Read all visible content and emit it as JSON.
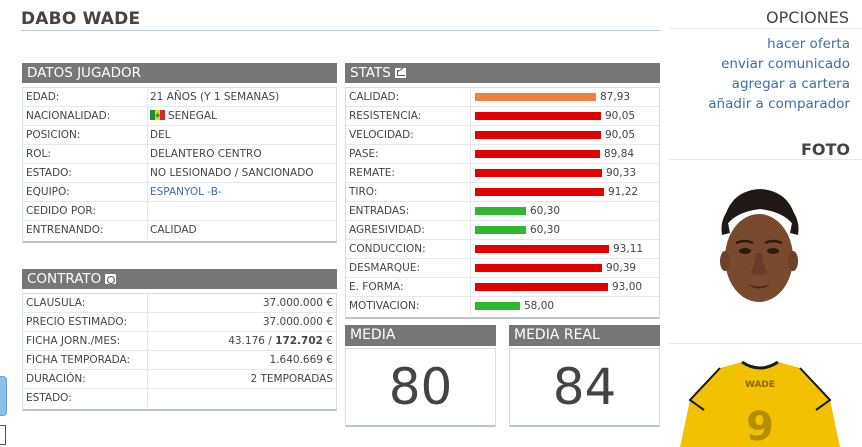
{
  "player": {
    "name": "DABO WADE"
  },
  "datos": {
    "title": "DATOS JUGADOR",
    "rows": [
      {
        "label": "EDAD:",
        "value": "21 AÑOS (Y 1 SEMANAS)"
      },
      {
        "label": "NACIONALIDAD:",
        "value": "SENEGAL",
        "flag": "senegal-flag"
      },
      {
        "label": "POSICION:",
        "value": "DEL"
      },
      {
        "label": "ROL:",
        "value": "DELANTERO CENTRO"
      },
      {
        "label": "ESTADO:",
        "value": "NO LESIONADO / SANCIONADO"
      },
      {
        "label": "EQUIPO:",
        "value": "ESPANYOL -B-",
        "link": true
      },
      {
        "label": "CEDIDO POR:",
        "value": ""
      },
      {
        "label": "ENTRENANDO:",
        "value": "CALIDAD"
      }
    ]
  },
  "contrato": {
    "title": "CONTRATO",
    "rows": [
      {
        "label": "CLAUSULA:",
        "value": "37.000.000 €"
      },
      {
        "label": "PRECIO ESTIMADO:",
        "value": "37.000.000 €"
      },
      {
        "label": "FICHA JORN./MES:",
        "value_a": "43.176 / ",
        "value_b": "172.702",
        "value_c": " €"
      },
      {
        "label": "FICHA TEMPORADA:",
        "value": "1.640.669 €"
      },
      {
        "label": "DURACIÓN:",
        "value": "2 TEMPORADAS"
      },
      {
        "label": "ESTADO:",
        "value": ""
      }
    ]
  },
  "stats": {
    "title": "STATS",
    "icon": "chart-icon",
    "max": 100,
    "colors": {
      "high": "#e20000",
      "low": "#2db82d",
      "calidad": "#f08040"
    },
    "items": [
      {
        "label": "CALIDAD:",
        "value": 87.93,
        "display": "87,93",
        "color": "calidad"
      },
      {
        "label": "RESISTENCIA:",
        "value": 90.05,
        "display": "90,05",
        "color": "high"
      },
      {
        "label": "VELOCIDAD:",
        "value": 90.05,
        "display": "90,05",
        "color": "high"
      },
      {
        "label": "PASE:",
        "value": 89.84,
        "display": "89,84",
        "color": "high"
      },
      {
        "label": "REMATE:",
        "value": 90.33,
        "display": "90,33",
        "color": "high"
      },
      {
        "label": "TIRO:",
        "value": 91.22,
        "display": "91,22",
        "color": "high"
      },
      {
        "label": "ENTRADAS:",
        "value": 60.3,
        "display": "60,30",
        "color": "low"
      },
      {
        "label": "AGRESIVIDAD:",
        "value": 60.3,
        "display": "60,30",
        "color": "low"
      },
      {
        "label": "CONDUCCION:",
        "value": 93.11,
        "display": "93,11",
        "color": "high"
      },
      {
        "label": "DESMARQUE:",
        "value": 90.39,
        "display": "90,39",
        "color": "high"
      },
      {
        "label": "E. FORMA:",
        "value": 93.0,
        "display": "93,00",
        "color": "high"
      },
      {
        "label": "MOTIVACION:",
        "value": 58.0,
        "display": "58,00",
        "color": "low"
      }
    ]
  },
  "media": {
    "title": "MEDIA",
    "value": "80"
  },
  "media_real": {
    "title": "MEDIA REAL",
    "value": "84"
  },
  "opciones": {
    "title": "OPCIONES",
    "links": [
      "hacer oferta",
      "enviar comunicado",
      "agregar a cartera",
      "añadir a comparador"
    ]
  },
  "foto": {
    "title": "FOTO",
    "shirt_name": "WADE",
    "shirt_number": "9",
    "shirt_color": "#f2c200"
  }
}
